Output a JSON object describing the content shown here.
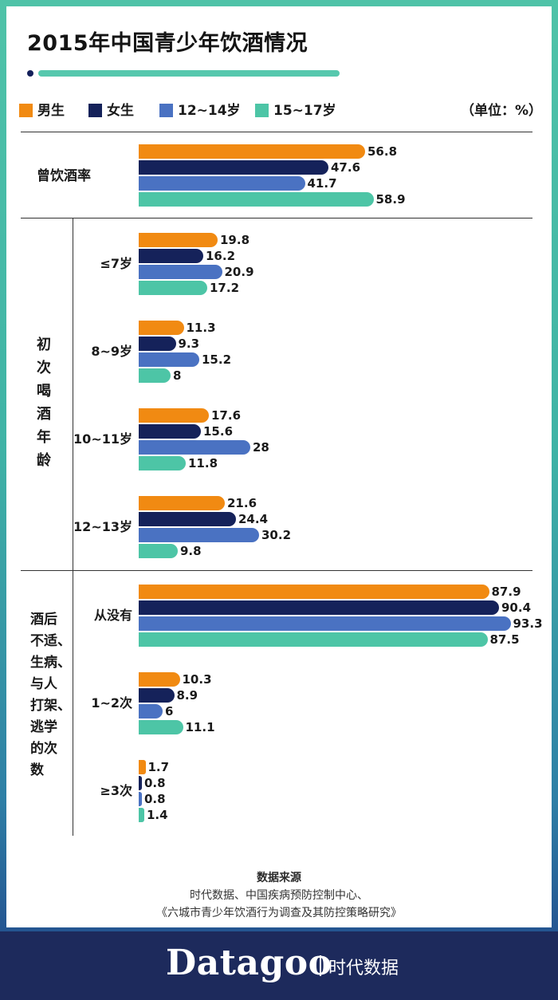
{
  "title": "2015年中国青少年饮酒情况",
  "unit": "（单位：%）",
  "legend": [
    {
      "label": "男生",
      "color": "#f18a12"
    },
    {
      "label": "女生",
      "color": "#15225a"
    },
    {
      "label": "12~14岁",
      "color": "#4a72c2"
    },
    {
      "label": "15~17岁",
      "color": "#4dc5a6"
    }
  ],
  "sections": {
    "drink_rate": "曾饮酒率",
    "first_age": "初次喝酒年龄",
    "discomfort": "酒后\n不适、\n生病、\n与人\n打架、\n逃学\n的次\n数"
  },
  "chart_data": {
    "type": "bar",
    "orientation": "horizontal",
    "title": "2015年中国青少年饮酒情况",
    "unit": "%",
    "series_names": [
      "男生",
      "女生",
      "12~14岁",
      "15~17岁"
    ],
    "groups": [
      {
        "section": "曾饮酒率",
        "label": "",
        "values": [
          56.8,
          47.6,
          41.7,
          58.9
        ],
        "labels": [
          "56.8",
          "47.6",
          "41.7",
          "58.9"
        ]
      },
      {
        "section": "初次喝酒年龄",
        "label": "≤7岁",
        "values": [
          19.8,
          16.2,
          20.9,
          17.2
        ],
        "labels": [
          "19.8",
          "16.2",
          "20.9",
          "17.2"
        ]
      },
      {
        "section": "初次喝酒年龄",
        "label": "8~9岁",
        "values": [
          11.3,
          9.3,
          15.2,
          8
        ],
        "labels": [
          "11.3",
          "9.3",
          "15.2",
          "8"
        ]
      },
      {
        "section": "初次喝酒年龄",
        "label": "10~11岁",
        "values": [
          17.6,
          15.6,
          28,
          11.8
        ],
        "labels": [
          "17.6",
          "15.6",
          "28",
          "11.8"
        ]
      },
      {
        "section": "初次喝酒年龄",
        "label": "12~13岁",
        "values": [
          21.6,
          24.4,
          30.2,
          9.8
        ],
        "labels": [
          "21.6",
          "24.4",
          "30.2",
          "9.8"
        ]
      },
      {
        "section": "酒后不适、生病、与人打架、逃学的次数",
        "label": "从没有",
        "values": [
          87.9,
          90.4,
          93.3,
          87.5
        ],
        "labels": [
          "87.9",
          "90.4",
          "93.3",
          "87.5"
        ]
      },
      {
        "section": "酒后不适、生病、与人打架、逃学的次数",
        "label": "1~2次",
        "values": [
          10.3,
          8.9,
          6,
          11.1
        ],
        "labels": [
          "10.3",
          "8.9",
          "6",
          "11.1"
        ]
      },
      {
        "section": "酒后不适、生病、与人打架、逃学的次数",
        "label": "≥3次",
        "values": [
          1.7,
          0.8,
          0.8,
          1.4
        ],
        "labels": [
          "1.7",
          "0.8",
          "0.8",
          "1.4"
        ]
      }
    ]
  },
  "source": {
    "heading": "数据来源",
    "line1": "时代数据、中国疾病预防控制中心、",
    "line2": "《六城市青少年饮酒行为调查及其防控策略研究》"
  },
  "footer": {
    "brand": "Datagoo",
    "brand_cn": "时代数据"
  }
}
